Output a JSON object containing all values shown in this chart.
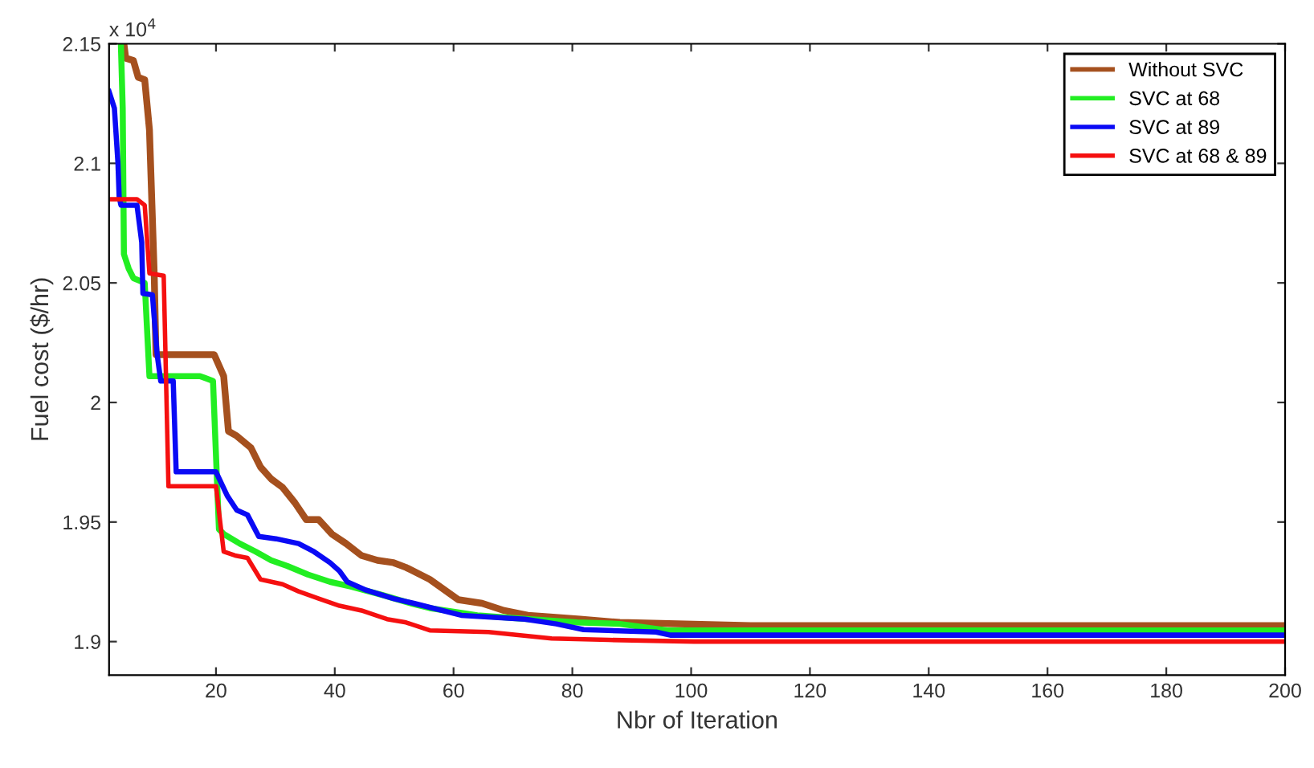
{
  "chart_data": {
    "type": "line",
    "xlabel": "Nbr of Iteration",
    "ylabel": "Fuel cost ($/hr)",
    "annotations": [
      "x 10$^{4}$"
    ],
    "xlim": [
      2,
      200
    ],
    "ylim": [
      1.886,
      2.15
    ],
    "xticks": [
      20,
      40,
      60,
      80,
      100,
      120,
      140,
      160,
      180,
      200
    ],
    "yticks": [
      1.9,
      1.95,
      2,
      2.05,
      2.1,
      2.15
    ],
    "grid": false,
    "legend": "top right",
    "line_style": "solid",
    "marker": "none",
    "series": [
      {
        "name": "Without SVC",
        "color": "#a5501e",
        "x": [
          4.5,
          4.8,
          6.1,
          6.9,
          8,
          8.8,
          9.6,
          9.9,
          19.7,
          21.3,
          22.1,
          23.5,
          25.9,
          27.5,
          29.3,
          31.2,
          33.3,
          35.2,
          37.3,
          39.5,
          41.9,
          44.5,
          47.2,
          49.9,
          52,
          56,
          60.8,
          64.8,
          68.5,
          72.5,
          81.3,
          88,
          110,
          200
        ],
        "values": [
          2.15,
          2.144,
          2.143,
          2.136,
          2.135,
          2.114,
          2.054,
          2.02,
          2.02,
          2.011,
          1.988,
          1.986,
          1.981,
          1.973,
          1.968,
          1.9645,
          1.958,
          1.951,
          1.951,
          1.945,
          1.941,
          1.936,
          1.934,
          1.933,
          1.931,
          1.926,
          1.9175,
          1.916,
          1.913,
          1.911,
          1.9094,
          1.908,
          1.9067,
          1.9067
        ]
      },
      {
        "name": "SVC at 68",
        "color": "#22ee22",
        "x": [
          4,
          4.3,
          4.5,
          5.3,
          6.1,
          8,
          8.8,
          17.3,
          19.5,
          20.5,
          21.3,
          24,
          26.7,
          29.3,
          32,
          35.5,
          39.2,
          42.7,
          48,
          52.8,
          56,
          64,
          72.8,
          80.8,
          88,
          96,
          200
        ],
        "values": [
          2.149,
          2.123,
          2.062,
          2.056,
          2.052,
          2.05,
          2.011,
          2.011,
          2.009,
          1.947,
          1.945,
          1.941,
          1.9376,
          1.934,
          1.9316,
          1.928,
          1.925,
          1.923,
          1.9195,
          1.916,
          1.914,
          1.911,
          1.9094,
          1.908,
          1.9074,
          1.9047,
          1.9047
        ]
      },
      {
        "name": "SVC at 89",
        "color": "#0a0af5",
        "x": [
          2,
          2.9,
          3.5,
          3.7,
          4,
          6.7,
          7.5,
          7.7,
          9.3,
          10.1,
          10.7,
          12.8,
          13.3,
          20,
          21.9,
          23.5,
          25.3,
          27.2,
          30.1,
          33.9,
          36.5,
          39.2,
          40.8,
          42.1,
          45.3,
          49.9,
          53.3,
          61.3,
          72,
          77.3,
          81.9,
          94.1,
          96.5,
          200
        ],
        "values": [
          2.13,
          2.123,
          2.1,
          2.086,
          2.0825,
          2.0825,
          2.067,
          2.0456,
          2.045,
          2.02,
          2.009,
          2.009,
          1.971,
          1.971,
          1.961,
          1.955,
          1.953,
          1.944,
          1.943,
          1.941,
          1.9376,
          1.933,
          1.9295,
          1.925,
          1.9215,
          1.918,
          1.916,
          1.911,
          1.9094,
          1.9074,
          1.905,
          1.904,
          1.9027,
          1.9027
        ]
      },
      {
        "name": "SVC at 68 & 89",
        "color": "#f51010",
        "x": [
          2,
          6.7,
          8,
          8.8,
          11.2,
          12,
          20,
          21.3,
          23.2,
          25.3,
          27.5,
          31.2,
          33.9,
          37.3,
          40.8,
          44.5,
          48.8,
          52,
          56,
          65.9,
          76.5,
          86.1,
          100.5,
          200
        ],
        "values": [
          2.085,
          2.085,
          2.0825,
          2.054,
          2.053,
          1.965,
          1.965,
          1.9376,
          1.936,
          1.935,
          1.926,
          1.924,
          1.921,
          1.918,
          1.915,
          1.913,
          1.9094,
          1.908,
          1.9047,
          1.904,
          1.9013,
          1.9007,
          1.9,
          1.9
        ]
      }
    ]
  }
}
